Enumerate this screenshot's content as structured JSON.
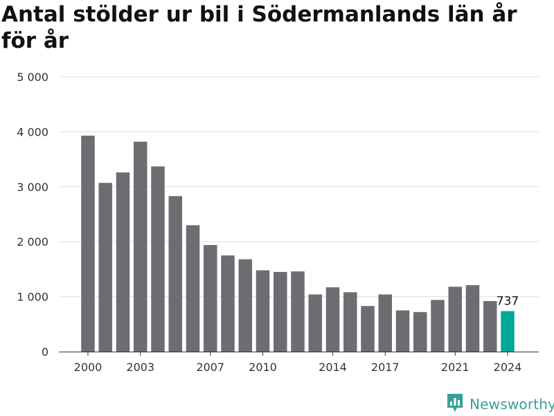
{
  "title": "Antal stölder ur bil i Södermanlands län år för år",
  "brand": "Newsworthy",
  "colors": {
    "bar": "#6d6c71",
    "highlight": "#00a89a",
    "grid": "#dddddd",
    "brand": "#3a9f96"
  },
  "chart_data": {
    "type": "bar",
    "title": "Antal stölder ur bil i Södermanlands län år för år",
    "xlabel": "",
    "ylabel": "",
    "ylim": [
      0,
      5000
    ],
    "yticks": [
      0,
      1000,
      2000,
      3000,
      4000,
      5000
    ],
    "ytick_labels": [
      "0",
      "1 000",
      "2 000",
      "3 000",
      "4 000",
      "5 000"
    ],
    "categories": [
      "2000",
      "2001",
      "2002",
      "2003",
      "2004",
      "2005",
      "2006",
      "2007",
      "2008",
      "2009",
      "2010",
      "2011",
      "2012",
      "2013",
      "2014",
      "2015",
      "2016",
      "2017",
      "2018",
      "2019",
      "2020",
      "2021",
      "2022",
      "2023",
      "2024"
    ],
    "xtick_labels": [
      "2000",
      "2003",
      "2007",
      "2010",
      "2014",
      "2017",
      "2021",
      "2024"
    ],
    "values": [
      3930,
      3070,
      3260,
      3820,
      3370,
      2830,
      2300,
      1940,
      1750,
      1680,
      1480,
      1450,
      1460,
      1040,
      1170,
      1080,
      830,
      1040,
      750,
      720,
      940,
      1180,
      1210,
      920,
      737
    ],
    "highlight_index": 24,
    "data_labels": [
      {
        "index": 24,
        "text": "737"
      }
    ],
    "grid": true,
    "legend": "none"
  }
}
